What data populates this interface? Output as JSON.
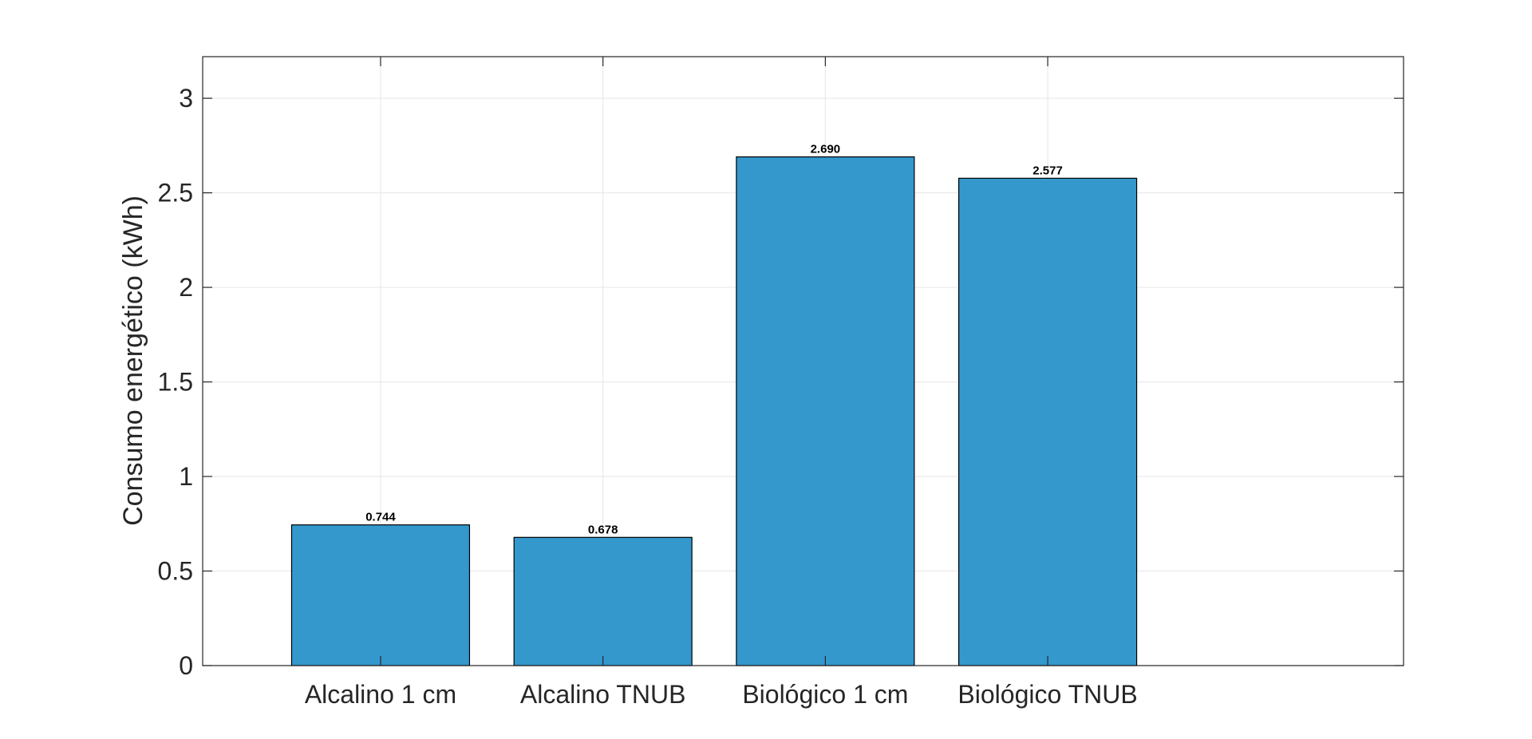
{
  "chart_data": {
    "type": "bar",
    "categories": [
      "Alcalino 1 cm",
      "Alcalino TNUB",
      "Biológico 1 cm",
      "Biológico TNUB"
    ],
    "values": [
      0.744,
      0.678,
      2.69,
      2.577
    ],
    "data_labels": [
      "0.744",
      "0.678",
      "2.690",
      "2.577"
    ],
    "title": "",
    "xlabel": "",
    "ylabel": "Consumo energético (kWh)",
    "ylim": [
      0,
      3.22
    ],
    "xlim": [
      0.2,
      5.6
    ],
    "yticks": [
      0,
      0.5,
      1,
      1.5,
      2,
      2.5,
      3
    ],
    "ytick_labels": [
      "0",
      "0.5",
      "1",
      "1.5",
      "2",
      "2.5",
      "3"
    ],
    "bar_width": 0.8,
    "grid": true,
    "legend": "none",
    "colors": {
      "bar": "#3498cd",
      "bar_edge": "#000000",
      "grid": "#e6e6e6",
      "axes": "#262626"
    }
  }
}
